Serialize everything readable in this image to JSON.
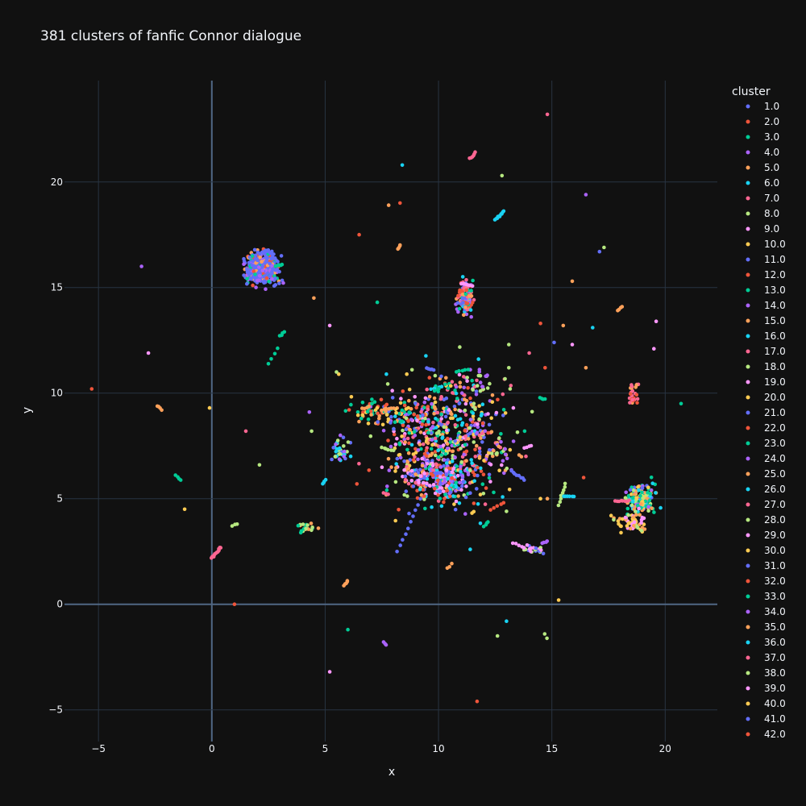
{
  "chart_data": {
    "type": "scatter",
    "title": "381 clusters of fanfic Connor dialogue",
    "xlabel": "x",
    "ylabel": "y",
    "xlim": [
      -6.5,
      22.3
    ],
    "ylim": [
      -6.5,
      24.8
    ],
    "x_ticks": [
      -5,
      0,
      5,
      10,
      15,
      20
    ],
    "x_tick_labels": [
      "−5",
      "0",
      "5",
      "10",
      "15",
      "20"
    ],
    "y_ticks": [
      -5,
      0,
      5,
      10,
      15,
      20
    ],
    "y_tick_labels": [
      "−5",
      "0",
      "5",
      "10",
      "15",
      "20"
    ],
    "grid": true,
    "background": "#111111",
    "grid_color": "#283442",
    "zero_line_color": "#506784",
    "legend": {
      "title": "cluster",
      "placement": "right",
      "entries": [
        "1.0",
        "2.0",
        "3.0",
        "4.0",
        "5.0",
        "6.0",
        "7.0",
        "8.0",
        "9.0",
        "10.0",
        "11.0",
        "12.0",
        "13.0",
        "14.0",
        "15.0",
        "16.0",
        "17.0",
        "18.0",
        "19.0",
        "20.0",
        "21.0",
        "22.0",
        "23.0",
        "24.0",
        "25.0",
        "26.0",
        "27.0",
        "28.0",
        "29.0",
        "30.0",
        "31.0",
        "32.0",
        "33.0",
        "34.0",
        "35.0",
        "36.0",
        "37.0",
        "38.0",
        "39.0",
        "40.0",
        "41.0",
        "42.0"
      ]
    },
    "palette": [
      "#636efa",
      "#EF553B",
      "#00cc96",
      "#ab63fa",
      "#FFA15A",
      "#19d3f3",
      "#FF6692",
      "#B6E880",
      "#FF97FF",
      "#FECB52"
    ],
    "dense_clusters": [
      {
        "x": 2.2,
        "y": 15.9,
        "sx": 0.35,
        "sy": 0.38,
        "n": 420,
        "colors": [
          0,
          0,
          0,
          0,
          0,
          0,
          3,
          0,
          2,
          4,
          1
        ]
      },
      {
        "x": 11.2,
        "y": 14.5,
        "sx": 0.17,
        "sy": 0.4,
        "n": 130,
        "colors": [
          6,
          1,
          2,
          0,
          3,
          5,
          4
        ]
      },
      {
        "x": 10.3,
        "y": 7.8,
        "sx": 1.25,
        "sy": 1.5,
        "n": 650,
        "colors": [
          0,
          1,
          2,
          3,
          4,
          5,
          6,
          7,
          8,
          9
        ]
      },
      {
        "x": 10.3,
        "y": 5.8,
        "sx": 0.6,
        "sy": 0.5,
        "n": 140,
        "colors": [
          0,
          2,
          3,
          5,
          1,
          8
        ]
      },
      {
        "x": 8.3,
        "y": 9.0,
        "sx": 0.5,
        "sy": 0.4,
        "n": 50,
        "colors": [
          4,
          9,
          2,
          0,
          1
        ]
      },
      {
        "x": 18.9,
        "y": 5.0,
        "sx": 0.3,
        "sy": 0.35,
        "n": 160,
        "colors": [
          2,
          2,
          5,
          3,
          0,
          7,
          4,
          9
        ]
      },
      {
        "x": 18.5,
        "y": 3.9,
        "sx": 0.35,
        "sy": 0.25,
        "n": 60,
        "colors": [
          9,
          4,
          7,
          8
        ]
      },
      {
        "x": 5.7,
        "y": 7.3,
        "sx": 0.25,
        "sy": 0.3,
        "n": 40,
        "colors": [
          0,
          7,
          3,
          5
        ]
      },
      {
        "x": 6.9,
        "y": 9.3,
        "sx": 0.5,
        "sy": 0.3,
        "n": 45,
        "colors": [
          4,
          9,
          1,
          2
        ]
      },
      {
        "x": 18.6,
        "y": 10.0,
        "sx": 0.1,
        "sy": 0.3,
        "n": 25,
        "colors": [
          1,
          4,
          6
        ]
      },
      {
        "x": 11.8,
        "y": 10.5,
        "sx": 0.6,
        "sy": 0.3,
        "n": 30,
        "colors": [
          6,
          7,
          3
        ]
      },
      {
        "x": 9.0,
        "y": 6.2,
        "sx": 0.4,
        "sy": 0.3,
        "n": 40,
        "colors": [
          6,
          8,
          4,
          0
        ]
      },
      {
        "x": 4.2,
        "y": 3.6,
        "sx": 0.2,
        "sy": 0.15,
        "n": 20,
        "colors": [
          4,
          7,
          2
        ]
      },
      {
        "x": 12.7,
        "y": 7.3,
        "sx": 0.5,
        "sy": 0.4,
        "n": 30,
        "colors": [
          9,
          4,
          7,
          3
        ]
      },
      {
        "x": 14.1,
        "y": 2.6,
        "sx": 0.25,
        "sy": 0.12,
        "n": 20,
        "colors": [
          0,
          7,
          8
        ]
      }
    ],
    "strands": [
      {
        "x1": 0.0,
        "y1": 2.2,
        "x2": 0.4,
        "y2": 2.7,
        "n": 14,
        "c": 6
      },
      {
        "x1": 2.5,
        "y1": 11.4,
        "x2": 2.9,
        "y2": 12.1,
        "n": 4,
        "c": 2
      },
      {
        "x1": 3.0,
        "y1": 12.7,
        "x2": 3.2,
        "y2": 12.9,
        "n": 4,
        "c": 2
      },
      {
        "x1": 4.9,
        "y1": 5.7,
        "x2": 5.0,
        "y2": 5.9,
        "n": 4,
        "c": 5
      },
      {
        "x1": 0.9,
        "y1": 3.7,
        "x2": 1.1,
        "y2": 3.8,
        "n": 3,
        "c": 7
      },
      {
        "x1": -2.4,
        "y1": 9.4,
        "x2": -2.2,
        "y2": 9.2,
        "n": 4,
        "c": 4
      },
      {
        "x1": -1.6,
        "y1": 6.1,
        "x2": -1.4,
        "y2": 5.9,
        "n": 4,
        "c": 2
      },
      {
        "x1": 11.4,
        "y1": 21.1,
        "x2": 11.6,
        "y2": 21.4,
        "n": 6,
        "c": 6
      },
      {
        "x1": 12.5,
        "y1": 18.2,
        "x2": 12.9,
        "y2": 18.6,
        "n": 10,
        "c": 5
      },
      {
        "x1": 8.2,
        "y1": 16.8,
        "x2": 8.3,
        "y2": 17.0,
        "n": 4,
        "c": 4
      },
      {
        "x1": 17.9,
        "y1": 13.9,
        "x2": 18.1,
        "y2": 14.1,
        "n": 4,
        "c": 4
      },
      {
        "x1": 13.8,
        "y1": 7.4,
        "x2": 14.1,
        "y2": 7.5,
        "n": 4,
        "c": 8
      },
      {
        "x1": 13.2,
        "y1": 6.3,
        "x2": 13.8,
        "y2": 5.9,
        "n": 8,
        "c": 0
      },
      {
        "x1": 15.3,
        "y1": 4.7,
        "x2": 15.6,
        "y2": 5.7,
        "n": 8,
        "c": 7
      },
      {
        "x1": 15.5,
        "y1": 5.1,
        "x2": 16.0,
        "y2": 5.1,
        "n": 6,
        "c": 5
      },
      {
        "x1": 5.8,
        "y1": 0.9,
        "x2": 6.0,
        "y2": 1.1,
        "n": 5,
        "c": 4
      },
      {
        "x1": 7.6,
        "y1": 5.3,
        "x2": 7.8,
        "y2": 5.2,
        "n": 3,
        "c": 6
      },
      {
        "x1": 8.2,
        "y1": 2.5,
        "x2": 9.2,
        "y2": 5.0,
        "n": 10,
        "c": 0
      },
      {
        "x1": 7.5,
        "y1": 7.4,
        "x2": 8.0,
        "y2": 7.3,
        "n": 6,
        "c": 7
      },
      {
        "x1": 7.5,
        "y1": 9.2,
        "x2": 8.0,
        "y2": 9.3,
        "n": 6,
        "c": 4
      },
      {
        "x1": 9.5,
        "y1": 11.2,
        "x2": 9.8,
        "y2": 11.1,
        "n": 5,
        "c": 0
      },
      {
        "x1": 10.8,
        "y1": 11.0,
        "x2": 11.3,
        "y2": 11.1,
        "n": 5,
        "c": 2
      },
      {
        "x1": 12.0,
        "y1": 3.7,
        "x2": 12.2,
        "y2": 3.9,
        "n": 4,
        "c": 2
      },
      {
        "x1": 12.3,
        "y1": 4.5,
        "x2": 12.9,
        "y2": 4.8,
        "n": 5,
        "c": 1
      },
      {
        "x1": 13.3,
        "y1": 2.9,
        "x2": 13.8,
        "y2": 2.7,
        "n": 5,
        "c": 8
      },
      {
        "x1": 14.6,
        "y1": 2.9,
        "x2": 14.8,
        "y2": 3.0,
        "n": 4,
        "c": 3
      },
      {
        "x1": 14.5,
        "y1": 9.8,
        "x2": 14.7,
        "y2": 9.7,
        "n": 4,
        "c": 2
      },
      {
        "x1": 17.8,
        "y1": 4.9,
        "x2": 18.4,
        "y2": 4.9,
        "n": 8,
        "c": 6
      },
      {
        "x1": 10.4,
        "y1": 1.7,
        "x2": 10.6,
        "y2": 1.9,
        "n": 3,
        "c": 4
      },
      {
        "x1": 7.6,
        "y1": -1.8,
        "x2": 7.7,
        "y2": -1.9,
        "n": 3,
        "c": 3
      },
      {
        "x1": 14.7,
        "y1": -1.4,
        "x2": 14.8,
        "y2": -1.6,
        "n": 2,
        "c": 7
      },
      {
        "x1": 2.8,
        "y1": 16.0,
        "x2": 3.1,
        "y2": 16.1,
        "n": 6,
        "c": 2
      },
      {
        "x1": 11.0,
        "y1": 15.2,
        "x2": 11.5,
        "y2": 15.1,
        "n": 6,
        "c": 8
      }
    ],
    "scatter_points": [
      [
        14.8,
        23.2,
        6
      ],
      [
        12.8,
        20.3,
        7
      ],
      [
        8.4,
        20.8,
        5
      ],
      [
        7.8,
        18.9,
        4
      ],
      [
        8.3,
        19.0,
        1
      ],
      [
        16.5,
        19.4,
        3
      ],
      [
        17.1,
        16.7,
        0
      ],
      [
        17.3,
        16.9,
        7
      ],
      [
        6.5,
        17.5,
        1
      ],
      [
        15.9,
        15.3,
        4
      ],
      [
        4.5,
        14.5,
        4
      ],
      [
        7.3,
        14.3,
        2
      ],
      [
        5.2,
        13.2,
        8
      ],
      [
        14.5,
        13.3,
        1
      ],
      [
        15.5,
        13.2,
        4
      ],
      [
        16.8,
        13.1,
        5
      ],
      [
        19.6,
        13.4,
        8
      ],
      [
        13.1,
        12.3,
        7
      ],
      [
        15.1,
        12.4,
        0
      ],
      [
        15.9,
        12.3,
        8
      ],
      [
        14.0,
        11.9,
        6
      ],
      [
        19.5,
        12.1,
        8
      ],
      [
        13.1,
        11.2,
        7
      ],
      [
        14.7,
        11.2,
        1
      ],
      [
        16.5,
        11.2,
        4
      ],
      [
        -3.1,
        16.0,
        3
      ],
      [
        -2.8,
        11.9,
        8
      ],
      [
        -5.3,
        10.2,
        1
      ],
      [
        -0.1,
        9.3,
        9
      ],
      [
        1.5,
        8.2,
        6
      ],
      [
        4.3,
        9.1,
        3
      ],
      [
        4.4,
        8.2,
        7
      ],
      [
        2.1,
        6.6,
        7
      ],
      [
        -1.2,
        4.5,
        9
      ],
      [
        4.7,
        3.6,
        4
      ],
      [
        6.4,
        5.7,
        1
      ],
      [
        5.6,
        10.9,
        9
      ],
      [
        5.5,
        11.0,
        7
      ],
      [
        7.7,
        10.9,
        5
      ],
      [
        8.6,
        10.9,
        9
      ],
      [
        13.3,
        9.3,
        8
      ],
      [
        13.8,
        8.2,
        2
      ],
      [
        16.4,
        6.0,
        1
      ],
      [
        20.7,
        9.5,
        2
      ],
      [
        14.5,
        5.0,
        9
      ],
      [
        14.8,
        5.0,
        4
      ],
      [
        11.4,
        2.6,
        5
      ],
      [
        15.3,
        0.2,
        9
      ],
      [
        13.0,
        -0.8,
        5
      ],
      [
        12.6,
        -1.5,
        7
      ],
      [
        6.0,
        -1.2,
        2
      ],
      [
        5.2,
        -3.2,
        8
      ],
      [
        11.7,
        -4.6,
        1
      ],
      [
        1.0,
        0.0,
        1
      ],
      [
        12.1,
        5.5,
        1
      ],
      [
        8.7,
        4.3,
        0
      ],
      [
        9.7,
        4.6,
        5
      ],
      [
        13.0,
        4.4,
        7
      ]
    ]
  }
}
